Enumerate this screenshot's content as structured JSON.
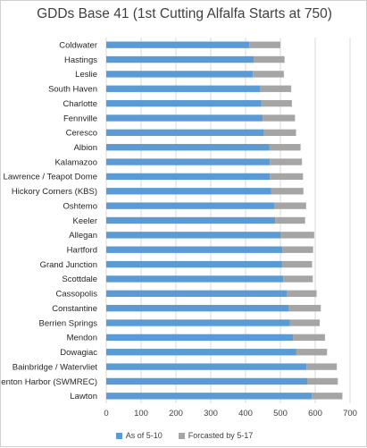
{
  "chart_data": {
    "type": "bar",
    "orientation": "horizontal",
    "stacked": true,
    "title": "GDDs Base 41 (1st Cutting Alfalfa Starts at 750)",
    "categories": [
      "Coldwater",
      "Hastings",
      "Leslie",
      "South Haven",
      "Charlotte",
      "Fennville",
      "Ceresco",
      "Albion",
      "Kalamazoo",
      "Lawrence / Teapot Dome",
      "Hickory Corners (KBS)",
      "Oshtemo",
      "Keeler",
      "Allegan",
      "Hartford",
      "Grand Junction",
      "Scottdale",
      "Cassopolis",
      "Constantine",
      "Berrien Springs",
      "Mendon",
      "Dowagiac",
      "Bainbridge / Watervliet",
      "Benton Harbor (SWMREC)",
      "Lawton"
    ],
    "series": [
      {
        "name": "As of 5-10",
        "color": "#5b9bd5",
        "values": [
          411,
          423,
          421,
          442,
          445,
          449,
          453,
          468,
          470,
          470,
          473,
          482,
          485,
          500,
          506,
          505,
          508,
          518,
          525,
          527,
          536,
          546,
          575,
          577,
          590
        ]
      },
      {
        "name": "Forcasted by 5-17",
        "color": "#a5a5a5",
        "values": [
          89,
          89,
          89,
          89,
          88,
          93,
          92,
          90,
          92,
          95,
          93,
          92,
          86,
          97,
          88,
          86,
          85,
          86,
          91,
          86,
          92,
          88,
          87,
          88,
          88
        ]
      }
    ],
    "xlim": [
      0,
      700
    ],
    "xticks": [
      "0",
      "100",
      "200",
      "300",
      "400",
      "500",
      "600",
      "700"
    ],
    "grid": "vertical",
    "legend_position": "bottom"
  }
}
